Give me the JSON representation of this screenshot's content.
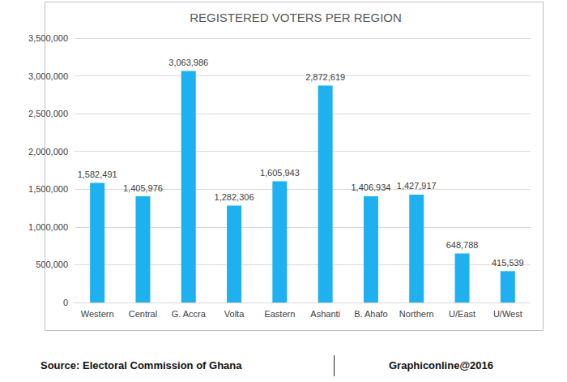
{
  "chart_data": {
    "type": "bar",
    "title": "REGISTERED VOTERS PER REGION",
    "categories": [
      "Western",
      "Central",
      "G. Accra",
      "Volta",
      "Eastern",
      "Ashanti",
      "B. Ahafo",
      "Northern",
      "U/East",
      "U/West"
    ],
    "values": [
      1582491,
      1405976,
      3063986,
      1282306,
      1605943,
      2872619,
      1406934,
      1427917,
      648788,
      415539
    ],
    "value_labels": [
      "1,582,491",
      "1,405,976",
      "3,063,986",
      "1,282,306",
      "1,605,943",
      "2,872,619",
      "1,406,934",
      "1,427,917",
      "648,788",
      "415,539"
    ],
    "color": "#1fb1ef",
    "ylim": [
      0,
      3500000
    ],
    "yticks": [
      0,
      {
        "value": 500000,
        "label": "500,000"
      },
      {
        "value": 1000000,
        "label": "1,000,000"
      },
      {
        "value": 1500000,
        "label": "1,500,000"
      },
      {
        "value": 2000000,
        "label": "2,000,000"
      },
      {
        "value": 2500000,
        "label": "2,500,000"
      },
      {
        "value": 3000000,
        "label": "3,000,000"
      },
      {
        "value": 3500000,
        "label": "3,500,000"
      }
    ],
    "grid": true,
    "data_labels": true,
    "annotations": [
      "Source: Electoral Commission of Ghana",
      "Graphiconline@2016"
    ]
  }
}
